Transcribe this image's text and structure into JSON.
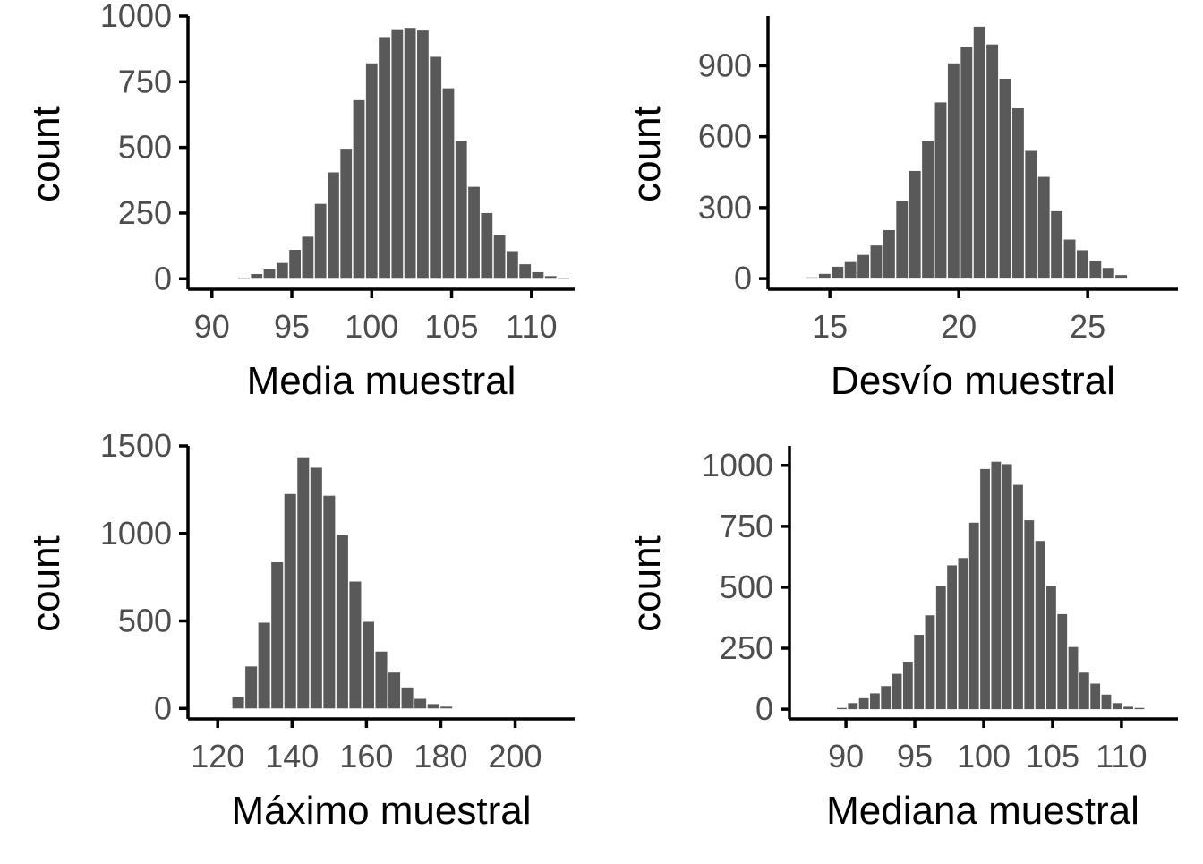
{
  "colors": {
    "bar": "#595959",
    "axis": "#000000",
    "tick_text": "#4d4d4d",
    "background": "#ffffff"
  },
  "chart_data": [
    {
      "type": "bar",
      "title": "",
      "xlabel": "Media muestral",
      "ylabel": "count",
      "xlim": [
        88.5,
        112.7
      ],
      "ylim": [
        -40,
        1000
      ],
      "xticks": [
        90,
        95,
        100,
        105,
        110
      ],
      "yticks": [
        0,
        250,
        500,
        750,
        1000
      ],
      "bin_width": 0.8,
      "grid": false,
      "bins": [
        {
          "x": 92.0,
          "count": 3
        },
        {
          "x": 92.8,
          "count": 18
        },
        {
          "x": 93.6,
          "count": 35
        },
        {
          "x": 94.4,
          "count": 60
        },
        {
          "x": 95.2,
          "count": 110
        },
        {
          "x": 96.0,
          "count": 160
        },
        {
          "x": 96.8,
          "count": 285
        },
        {
          "x": 97.6,
          "count": 405
        },
        {
          "x": 98.4,
          "count": 495
        },
        {
          "x": 99.2,
          "count": 680
        },
        {
          "x": 100.0,
          "count": 820
        },
        {
          "x": 100.8,
          "count": 920
        },
        {
          "x": 101.6,
          "count": 950
        },
        {
          "x": 102.4,
          "count": 955
        },
        {
          "x": 103.2,
          "count": 945
        },
        {
          "x": 104.0,
          "count": 845
        },
        {
          "x": 104.8,
          "count": 725
        },
        {
          "x": 105.6,
          "count": 525
        },
        {
          "x": 106.4,
          "count": 350
        },
        {
          "x": 107.2,
          "count": 250
        },
        {
          "x": 108.0,
          "count": 165
        },
        {
          "x": 108.8,
          "count": 105
        },
        {
          "x": 109.6,
          "count": 55
        },
        {
          "x": 110.4,
          "count": 25
        },
        {
          "x": 111.2,
          "count": 10
        },
        {
          "x": 112.0,
          "count": 2
        }
      ]
    },
    {
      "type": "bar",
      "title": "",
      "xlabel": "Desvío muestral",
      "ylabel": "count",
      "xlim": [
        12.6,
        28.5
      ],
      "ylim": [
        -45,
        1110
      ],
      "xticks": [
        15,
        20,
        25
      ],
      "yticks": [
        0,
        300,
        600,
        900
      ],
      "bin_width": 0.5,
      "grid": false,
      "bins": [
        {
          "x": 14.3,
          "count": 5
        },
        {
          "x": 14.8,
          "count": 20
        },
        {
          "x": 15.3,
          "count": 50
        },
        {
          "x": 15.8,
          "count": 70
        },
        {
          "x": 16.3,
          "count": 100
        },
        {
          "x": 16.8,
          "count": 140
        },
        {
          "x": 17.3,
          "count": 205
        },
        {
          "x": 17.8,
          "count": 330
        },
        {
          "x": 18.3,
          "count": 455
        },
        {
          "x": 18.8,
          "count": 580
        },
        {
          "x": 19.3,
          "count": 745
        },
        {
          "x": 19.8,
          "count": 910
        },
        {
          "x": 20.3,
          "count": 980
        },
        {
          "x": 20.8,
          "count": 1065
        },
        {
          "x": 21.3,
          "count": 990
        },
        {
          "x": 21.8,
          "count": 845
        },
        {
          "x": 22.3,
          "count": 720
        },
        {
          "x": 22.8,
          "count": 540
        },
        {
          "x": 23.3,
          "count": 430
        },
        {
          "x": 23.8,
          "count": 285
        },
        {
          "x": 24.3,
          "count": 165
        },
        {
          "x": 24.8,
          "count": 120
        },
        {
          "x": 25.3,
          "count": 75
        },
        {
          "x": 25.8,
          "count": 45
        },
        {
          "x": 26.3,
          "count": 15
        }
      ]
    },
    {
      "type": "bar",
      "title": "",
      "xlabel": "Máximo muestral",
      "ylabel": "count",
      "xlim": [
        112,
        216
      ],
      "ylim": [
        -60,
        1500
      ],
      "xticks": [
        120,
        140,
        160,
        180,
        200
      ],
      "yticks": [
        0,
        500,
        1000,
        1500
      ],
      "bin_width": 3.5,
      "grid": false,
      "bins": [
        {
          "x": 125.5,
          "count": 65
        },
        {
          "x": 129.0,
          "count": 240
        },
        {
          "x": 132.5,
          "count": 490
        },
        {
          "x": 136.0,
          "count": 835
        },
        {
          "x": 139.5,
          "count": 1225
        },
        {
          "x": 143.0,
          "count": 1435
        },
        {
          "x": 146.5,
          "count": 1375
        },
        {
          "x": 150.0,
          "count": 1215
        },
        {
          "x": 153.5,
          "count": 990
        },
        {
          "x": 157.0,
          "count": 725
        },
        {
          "x": 160.5,
          "count": 495
        },
        {
          "x": 164.0,
          "count": 325
        },
        {
          "x": 167.5,
          "count": 205
        },
        {
          "x": 171.0,
          "count": 120
        },
        {
          "x": 174.5,
          "count": 55
        },
        {
          "x": 178.0,
          "count": 25
        },
        {
          "x": 181.5,
          "count": 10
        }
      ]
    },
    {
      "type": "bar",
      "title": "",
      "xlabel": "Mediana muestral",
      "ylabel": "count",
      "xlim": [
        85.9,
        114.1
      ],
      "ylim": [
        -40,
        1080
      ],
      "xticks": [
        90,
        95,
        100,
        105,
        110
      ],
      "yticks": [
        0,
        250,
        500,
        750,
        1000
      ],
      "bin_width": 0.8,
      "grid": false,
      "bins": [
        {
          "x": 89.7,
          "count": 5
        },
        {
          "x": 90.5,
          "count": 25
        },
        {
          "x": 91.3,
          "count": 45
        },
        {
          "x": 92.1,
          "count": 65
        },
        {
          "x": 92.9,
          "count": 95
        },
        {
          "x": 93.7,
          "count": 145
        },
        {
          "x": 94.5,
          "count": 195
        },
        {
          "x": 95.3,
          "count": 305
        },
        {
          "x": 96.1,
          "count": 385
        },
        {
          "x": 96.9,
          "count": 505
        },
        {
          "x": 97.7,
          "count": 590
        },
        {
          "x": 98.5,
          "count": 620
        },
        {
          "x": 99.3,
          "count": 765
        },
        {
          "x": 100.1,
          "count": 985
        },
        {
          "x": 100.9,
          "count": 1015
        },
        {
          "x": 101.7,
          "count": 1005
        },
        {
          "x": 102.5,
          "count": 920
        },
        {
          "x": 103.3,
          "count": 775
        },
        {
          "x": 104.1,
          "count": 690
        },
        {
          "x": 104.9,
          "count": 505
        },
        {
          "x": 105.7,
          "count": 390
        },
        {
          "x": 106.5,
          "count": 255
        },
        {
          "x": 107.3,
          "count": 150
        },
        {
          "x": 108.1,
          "count": 105
        },
        {
          "x": 108.9,
          "count": 60
        },
        {
          "x": 109.7,
          "count": 25
        },
        {
          "x": 110.5,
          "count": 10
        },
        {
          "x": 111.3,
          "count": 5
        }
      ]
    }
  ]
}
